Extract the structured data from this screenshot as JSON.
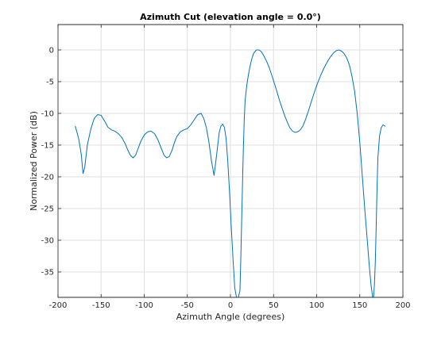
{
  "chart_data": {
    "type": "line",
    "title": "Azimuth Cut (elevation angle = 0.0°)",
    "xlabel": "Azimuth Angle (degrees)",
    "ylabel": "Normalized Power (dB)",
    "xlim": [
      -200,
      200
    ],
    "ylim": [
      -39,
      4
    ],
    "xticks": [
      -200,
      -150,
      -100,
      -50,
      0,
      50,
      100,
      150,
      200
    ],
    "yticks": [
      0,
      -5,
      -10,
      -15,
      -20,
      -25,
      -30,
      -35
    ],
    "xtick_labels": [
      "-200",
      "-150",
      "-100",
      "-50",
      "0",
      "50",
      "100",
      "150",
      "200"
    ],
    "ytick_labels": [
      "0",
      "-5",
      "-10",
      "-15",
      "-20",
      "-25",
      "-30",
      "-35"
    ],
    "grid": true,
    "legend": "none",
    "line_color": "#0072bd",
    "series": [
      {
        "x": [
          -180,
          -176,
          -173,
          -171,
          -169,
          -166,
          -162,
          -158,
          -154,
          -150,
          -146,
          -142,
          -138,
          -134,
          -130,
          -126,
          -122,
          -119,
          -116,
          -113,
          -110,
          -107,
          -104,
          -100,
          -96,
          -92,
          -88,
          -84,
          -80,
          -77,
          -74,
          -71,
          -68,
          -65,
          -62,
          -58,
          -54,
          -50,
          -46,
          -42,
          -38,
          -34,
          -31,
          -28,
          -25,
          -22,
          -19,
          -16,
          -13,
          -11,
          -9,
          -7,
          -5,
          -3,
          -1,
          1,
          3,
          5,
          7,
          9,
          11,
          12,
          13,
          14,
          15,
          16,
          17,
          19,
          21,
          23,
          25,
          27,
          30,
          33,
          36,
          39,
          42,
          45,
          48,
          51,
          54,
          57,
          60,
          63,
          66,
          69,
          72,
          75,
          78,
          81,
          84,
          87,
          90,
          93,
          96,
          99,
          102,
          105,
          108,
          111,
          114,
          117,
          120,
          123,
          126,
          129,
          132,
          135,
          138,
          141,
          144,
          147,
          150,
          153,
          156,
          159,
          161,
          163,
          165,
          166,
          167,
          168,
          169,
          170,
          171,
          173,
          175,
          177,
          179,
          180
        ],
        "values": [
          -12.0,
          -14.0,
          -16.5,
          -19.5,
          -18.5,
          -15.0,
          -12.5,
          -10.8,
          -10.2,
          -10.3,
          -11.2,
          -12.2,
          -12.6,
          -12.8,
          -13.2,
          -13.8,
          -14.8,
          -15.8,
          -16.6,
          -17.0,
          -16.6,
          -15.5,
          -14.4,
          -13.4,
          -12.9,
          -12.8,
          -13.2,
          -14.2,
          -15.6,
          -16.6,
          -17.0,
          -16.8,
          -15.9,
          -14.6,
          -13.6,
          -12.9,
          -12.6,
          -12.4,
          -11.8,
          -11.0,
          -10.2,
          -10.0,
          -10.8,
          -12.2,
          -14.5,
          -17.5,
          -19.8,
          -16.5,
          -13.0,
          -12.0,
          -11.7,
          -12.2,
          -14.0,
          -17.8,
          -22.5,
          -28.0,
          -33.0,
          -37.5,
          -39.0,
          -39.0,
          -38.0,
          -33.0,
          -27.0,
          -21.0,
          -15.5,
          -11.0,
          -8.0,
          -5.5,
          -3.8,
          -2.4,
          -1.3,
          -0.5,
          0.0,
          0.0,
          -0.3,
          -1.0,
          -1.8,
          -2.8,
          -4.0,
          -5.3,
          -6.6,
          -8.0,
          -9.2,
          -10.4,
          -11.4,
          -12.3,
          -12.8,
          -13.0,
          -12.9,
          -12.6,
          -12.0,
          -11.0,
          -9.8,
          -8.5,
          -7.2,
          -6.0,
          -4.9,
          -3.9,
          -3.0,
          -2.2,
          -1.5,
          -0.9,
          -0.4,
          -0.1,
          0.0,
          -0.2,
          -0.6,
          -1.3,
          -2.4,
          -4.2,
          -6.5,
          -10.0,
          -14.5,
          -20.0,
          -25.5,
          -30.5,
          -34.0,
          -37.0,
          -39.0,
          -39.0,
          -37.0,
          -33.5,
          -28.0,
          -22.0,
          -17.0,
          -13.5,
          -12.2,
          -11.8,
          -12.0,
          -12.0
        ]
      }
    ]
  }
}
